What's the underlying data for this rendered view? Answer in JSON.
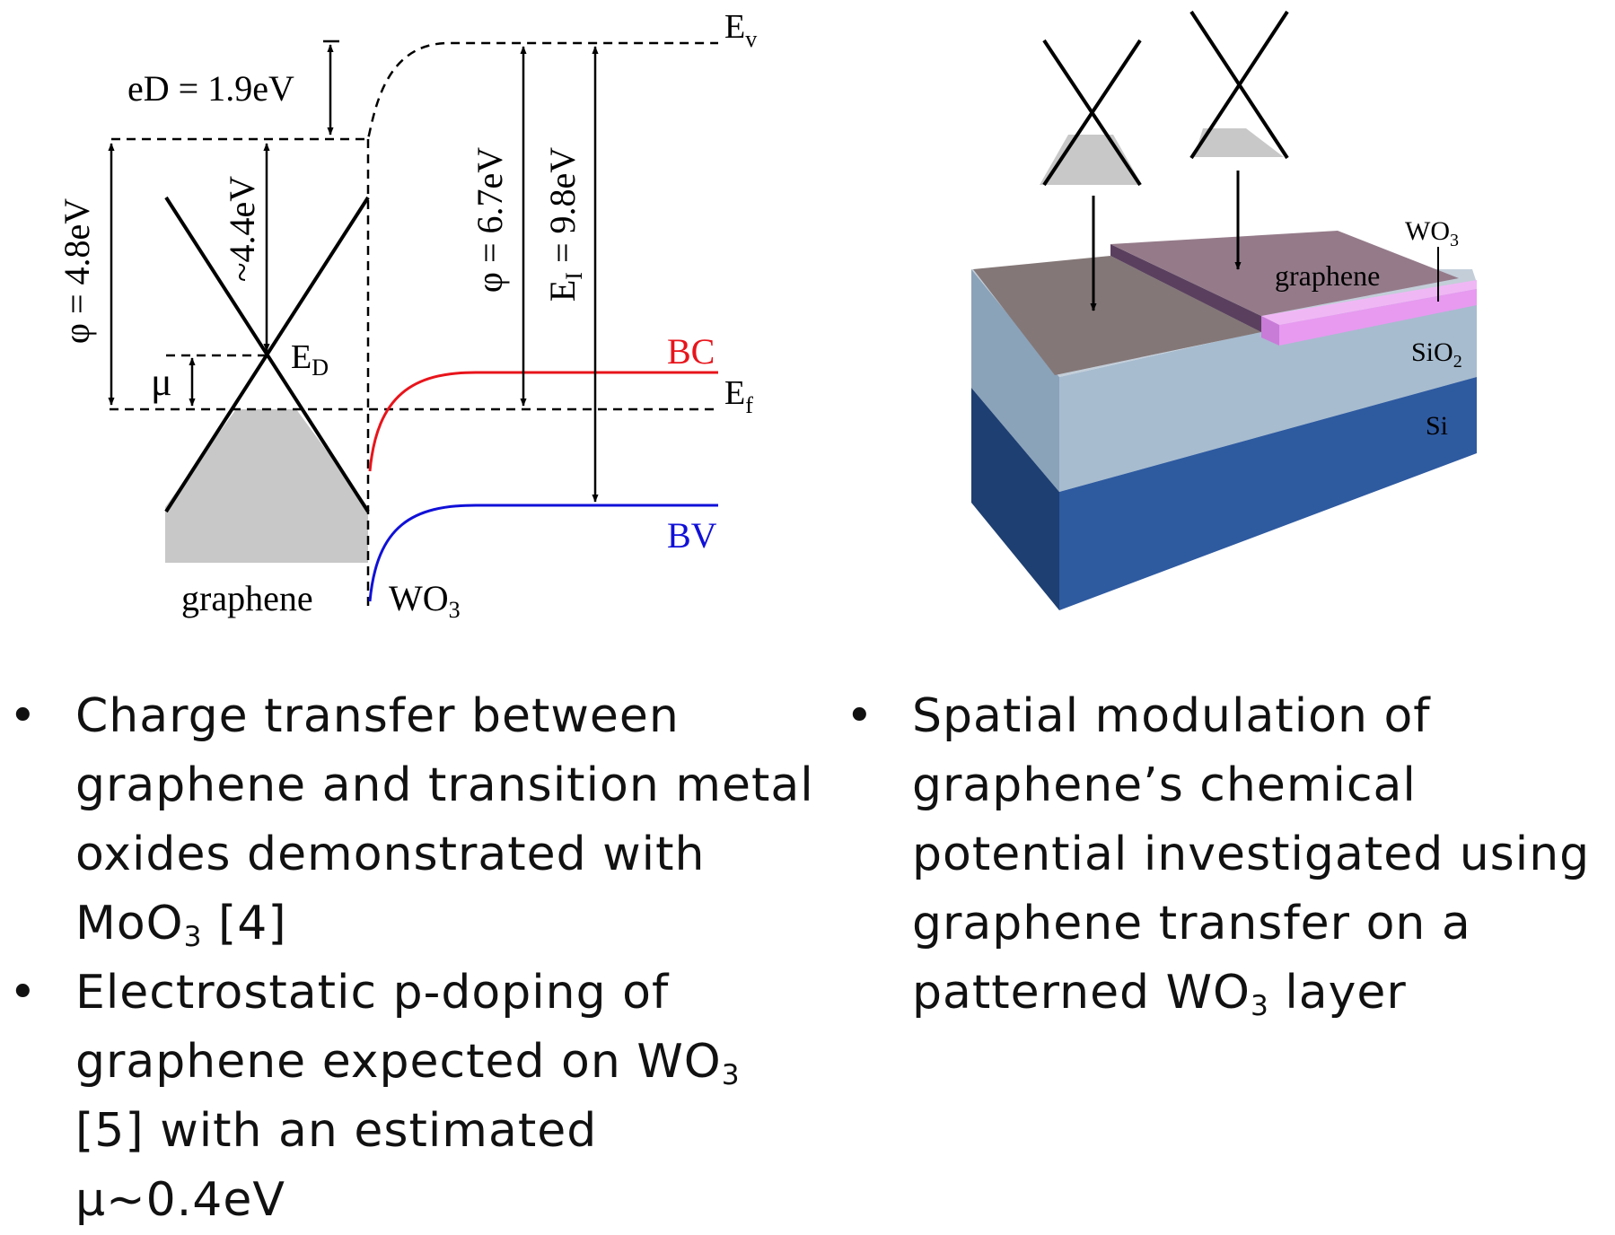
{
  "band_diagram": {
    "eD_label": "eD = 1.9eV",
    "phi_graphene": "φ = 4.8eV",
    "dirac_depth": "~4.4eV",
    "phi_wo3": "φ = 6.7eV",
    "ei_main": "E",
    "ei_sub": "I",
    "ei_value": " = 9.8eV",
    "mu_label": "μ",
    "ed_main": "E",
    "ed_sub": "D",
    "ev_main": "E",
    "ev_sub": "v",
    "ef_main": "E",
    "ef_sub": "f",
    "bc_label": "BC",
    "bv_label": "BV",
    "graphene_label": "graphene",
    "wo3_main": "WO",
    "wo3_sub": "3",
    "colors": {
      "bc": "#e8141b",
      "bv": "#1010d8",
      "fill": "#c8c8c8"
    }
  },
  "device_diagram": {
    "wo3_main": "WO",
    "wo3_sub": "3",
    "graphene_label": "graphene",
    "sio2_main": "SiO",
    "sio2_sub": "2",
    "si_label": "Si",
    "colors": {
      "si": "#2e5aa0",
      "sio2": "#a7bccf",
      "graphene": "#8a7a79",
      "wo3": "#e79af0"
    }
  },
  "bullets_left": {
    "b1": {
      "text": "Charge transfer between graphene and transition metal oxides demonstrated with MoO",
      "sub": "3",
      "tail": " [4]"
    },
    "b2": {
      "text": "Electrostatic p-doping of graphene expected on WO",
      "sub": "3",
      "tail": " [5] with an estimated μ~0.4eV"
    }
  },
  "bullets_right": {
    "b1": {
      "text": "Spatial modulation of graphene’s chemical potential investigated using graphene transfer on a patterned WO",
      "sub": "3",
      "tail": " layer"
    }
  }
}
